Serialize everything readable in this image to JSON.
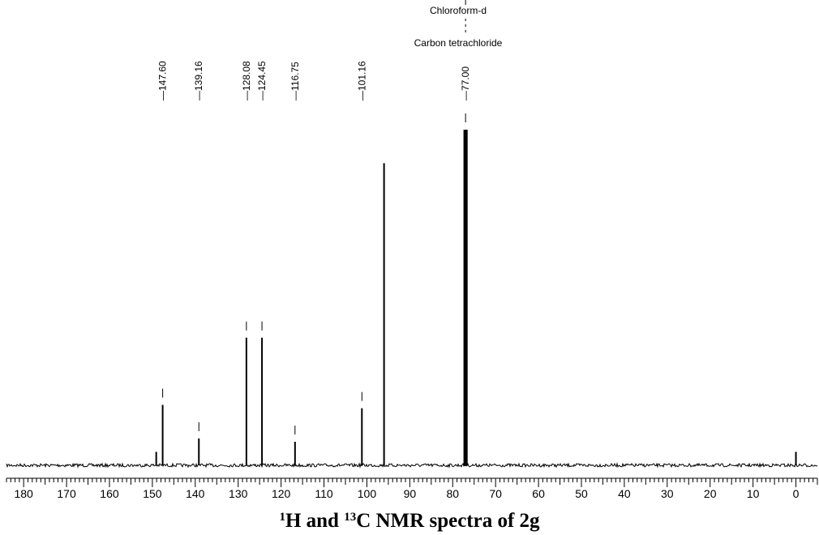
{
  "chart_data": {
    "type": "line",
    "subtype": "nmr-spectrum",
    "title": {
      "sup1": "1",
      "part1": "H and ",
      "sup2": "13",
      "part2": "C NMR spectra of 2g"
    },
    "xlabel": "",
    "ylabel": "",
    "x_reversed": true,
    "xlim": [
      184,
      -5
    ],
    "ylim": [
      0,
      1.0
    ],
    "x_ticks_major": [
      180,
      170,
      160,
      150,
      140,
      130,
      120,
      110,
      100,
      90,
      80,
      70,
      60,
      50,
      40,
      30,
      20,
      10,
      0
    ],
    "x_tick_labels": [
      "180",
      "170",
      "160",
      "150",
      "140",
      "130",
      "120",
      "110",
      "100",
      "90",
      "80",
      "70",
      "60",
      "50",
      "40",
      "30",
      "20",
      "10",
      "0"
    ],
    "minor_tick_step": 1,
    "grid": false,
    "legend": "none",
    "solvent_labels": [
      "Chloroform-d",
      "Carbon tetrachloride"
    ],
    "solvent_shift": 77.0,
    "peak_labels": [
      {
        "ppm": 147.6,
        "text": "147.60"
      },
      {
        "ppm": 139.16,
        "text": "139.16"
      },
      {
        "ppm": 128.08,
        "text": "128.08"
      },
      {
        "ppm": 124.45,
        "text": "124.45"
      },
      {
        "ppm": 116.75,
        "text": "116.75"
      },
      {
        "ppm": 101.16,
        "text": "101.16"
      },
      {
        "ppm": 77.0,
        "text": "77.00"
      }
    ],
    "peaks": [
      {
        "ppm": 149.1,
        "height": 0.04
      },
      {
        "ppm": 147.6,
        "height": 0.18
      },
      {
        "ppm": 139.16,
        "height": 0.08
      },
      {
        "ppm": 128.08,
        "height": 0.38
      },
      {
        "ppm": 124.45,
        "height": 0.38
      },
      {
        "ppm": 116.75,
        "height": 0.07
      },
      {
        "ppm": 101.16,
        "height": 0.17
      },
      {
        "ppm": 96.0,
        "height": 0.9
      },
      {
        "ppm": 77.2,
        "height": 1.0
      },
      {
        "ppm": 77.0,
        "height": 1.0
      },
      {
        "ppm": 76.8,
        "height": 1.0
      },
      {
        "ppm": 0.0,
        "height": 0.04
      }
    ],
    "colors": {
      "trace": "#000000",
      "axis": "#000000",
      "label": "#000000"
    }
  }
}
